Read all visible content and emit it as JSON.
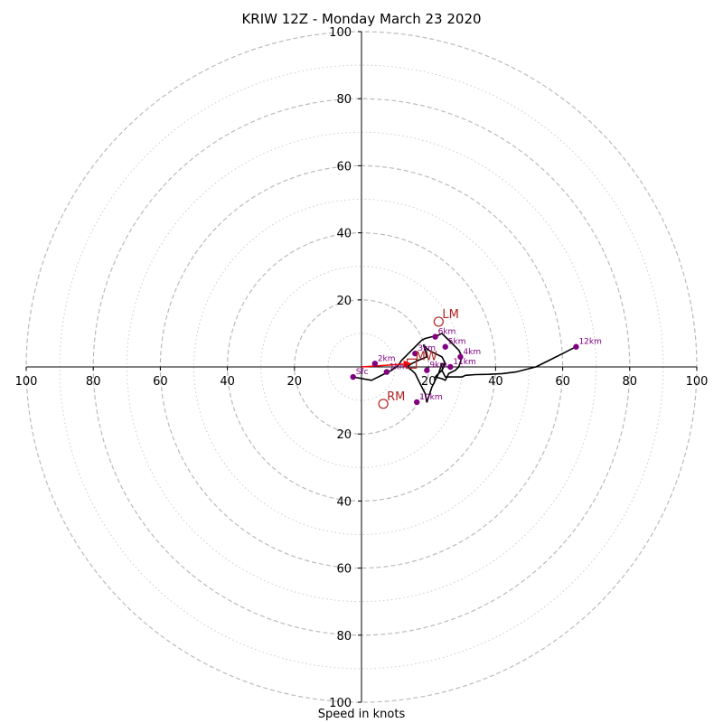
{
  "chart_data": {
    "type": "scatter",
    "title": "KRIW 12Z - Monday March 23 2020",
    "xlabel": "Speed in knots",
    "ylabel": "",
    "xlim": [
      -100,
      100
    ],
    "ylim": [
      -100,
      100
    ],
    "major_rings": [
      20,
      40,
      60,
      80,
      100
    ],
    "minor_rings": [
      10,
      30,
      50,
      70,
      90
    ],
    "x_tick_labels": [
      "100",
      "80",
      "60",
      "40",
      "20",
      "20",
      "40",
      "60",
      "80",
      "100"
    ],
    "x_tick_values": [
      -100,
      -80,
      -60,
      -40,
      -20,
      20,
      40,
      60,
      80,
      100
    ],
    "y_tick_labels": [
      "100",
      "80",
      "60",
      "40",
      "20",
      "20",
      "40",
      "60",
      "80",
      "100"
    ],
    "y_tick_values": [
      100,
      80,
      60,
      40,
      20,
      -20,
      -40,
      -60,
      -80,
      -100
    ],
    "grid": true,
    "colors": {
      "hodograph": "#000000",
      "height_points": "#800080",
      "storm_motion": "#b22222",
      "mean_wind_arrow": "#ff0000",
      "rings": "#bbbbbb"
    },
    "hodograph": {
      "u": [
        -2.5,
        3,
        7,
        9,
        11,
        12,
        13,
        14,
        15,
        16,
        17,
        17.5,
        18,
        19,
        21,
        23,
        24,
        25.5,
        27,
        29,
        30,
        29,
        28,
        26,
        25,
        24,
        22,
        24,
        25,
        24,
        22,
        20,
        19,
        18.5,
        19,
        19.5,
        17,
        15,
        13.5,
        15,
        16,
        17.5,
        19,
        19.5,
        20,
        21,
        22,
        23,
        24,
        24.5,
        24,
        25,
        27,
        30,
        31,
        34,
        38,
        42,
        46,
        52,
        56,
        60,
        64
      ],
      "v": [
        -3,
        -4,
        -2,
        -1,
        0.5,
        2,
        3,
        4,
        5,
        6,
        7,
        7.5,
        8,
        8.5,
        9,
        9.5,
        10,
        8.5,
        7,
        5,
        3,
        0,
        -1,
        -2,
        -4,
        -3.5,
        -3,
        -1,
        1,
        3,
        4,
        5,
        6,
        6.5,
        5,
        3,
        2,
        1,
        0,
        -1,
        -2,
        -5,
        -8,
        -10.5,
        -9,
        -6,
        -4,
        -2,
        1,
        1,
        -1,
        -3,
        -3,
        -3,
        -2.5,
        -2.3,
        -2.2,
        -2,
        -1.5,
        0,
        2,
        4,
        6
      ]
    },
    "height_points": [
      {
        "label": "Sfc",
        "u": -2.5,
        "v": -3
      },
      {
        "label": "1km",
        "u": 7.5,
        "v": -1.5
      },
      {
        "label": "2km",
        "u": 4,
        "v": 1
      },
      {
        "label": "3km",
        "u": 16,
        "v": 4
      },
      {
        "label": "4km",
        "u": 29.5,
        "v": 3
      },
      {
        "label": "5km",
        "u": 25,
        "v": 6
      },
      {
        "label": "6km",
        "u": 22,
        "v": 9
      },
      {
        "label": "9km",
        "u": 19.5,
        "v": -1
      },
      {
        "label": "10km",
        "u": 16.5,
        "v": -10.5
      },
      {
        "label": "11km",
        "u": 26.5,
        "v": 0
      },
      {
        "label": "12km",
        "u": 64,
        "v": 6
      }
    ],
    "storm_motion": [
      {
        "label": "LM",
        "u": 23,
        "v": 13.5,
        "marker": "circle"
      },
      {
        "label": "RM",
        "u": 6.5,
        "v": -11,
        "marker": "circle"
      },
      {
        "label": "MW",
        "u": 15,
        "v": 1,
        "marker": "square"
      }
    ],
    "mean_wind_arrow": {
      "from_u": 0,
      "from_v": 0,
      "to_u": 15,
      "to_v": 1
    }
  }
}
